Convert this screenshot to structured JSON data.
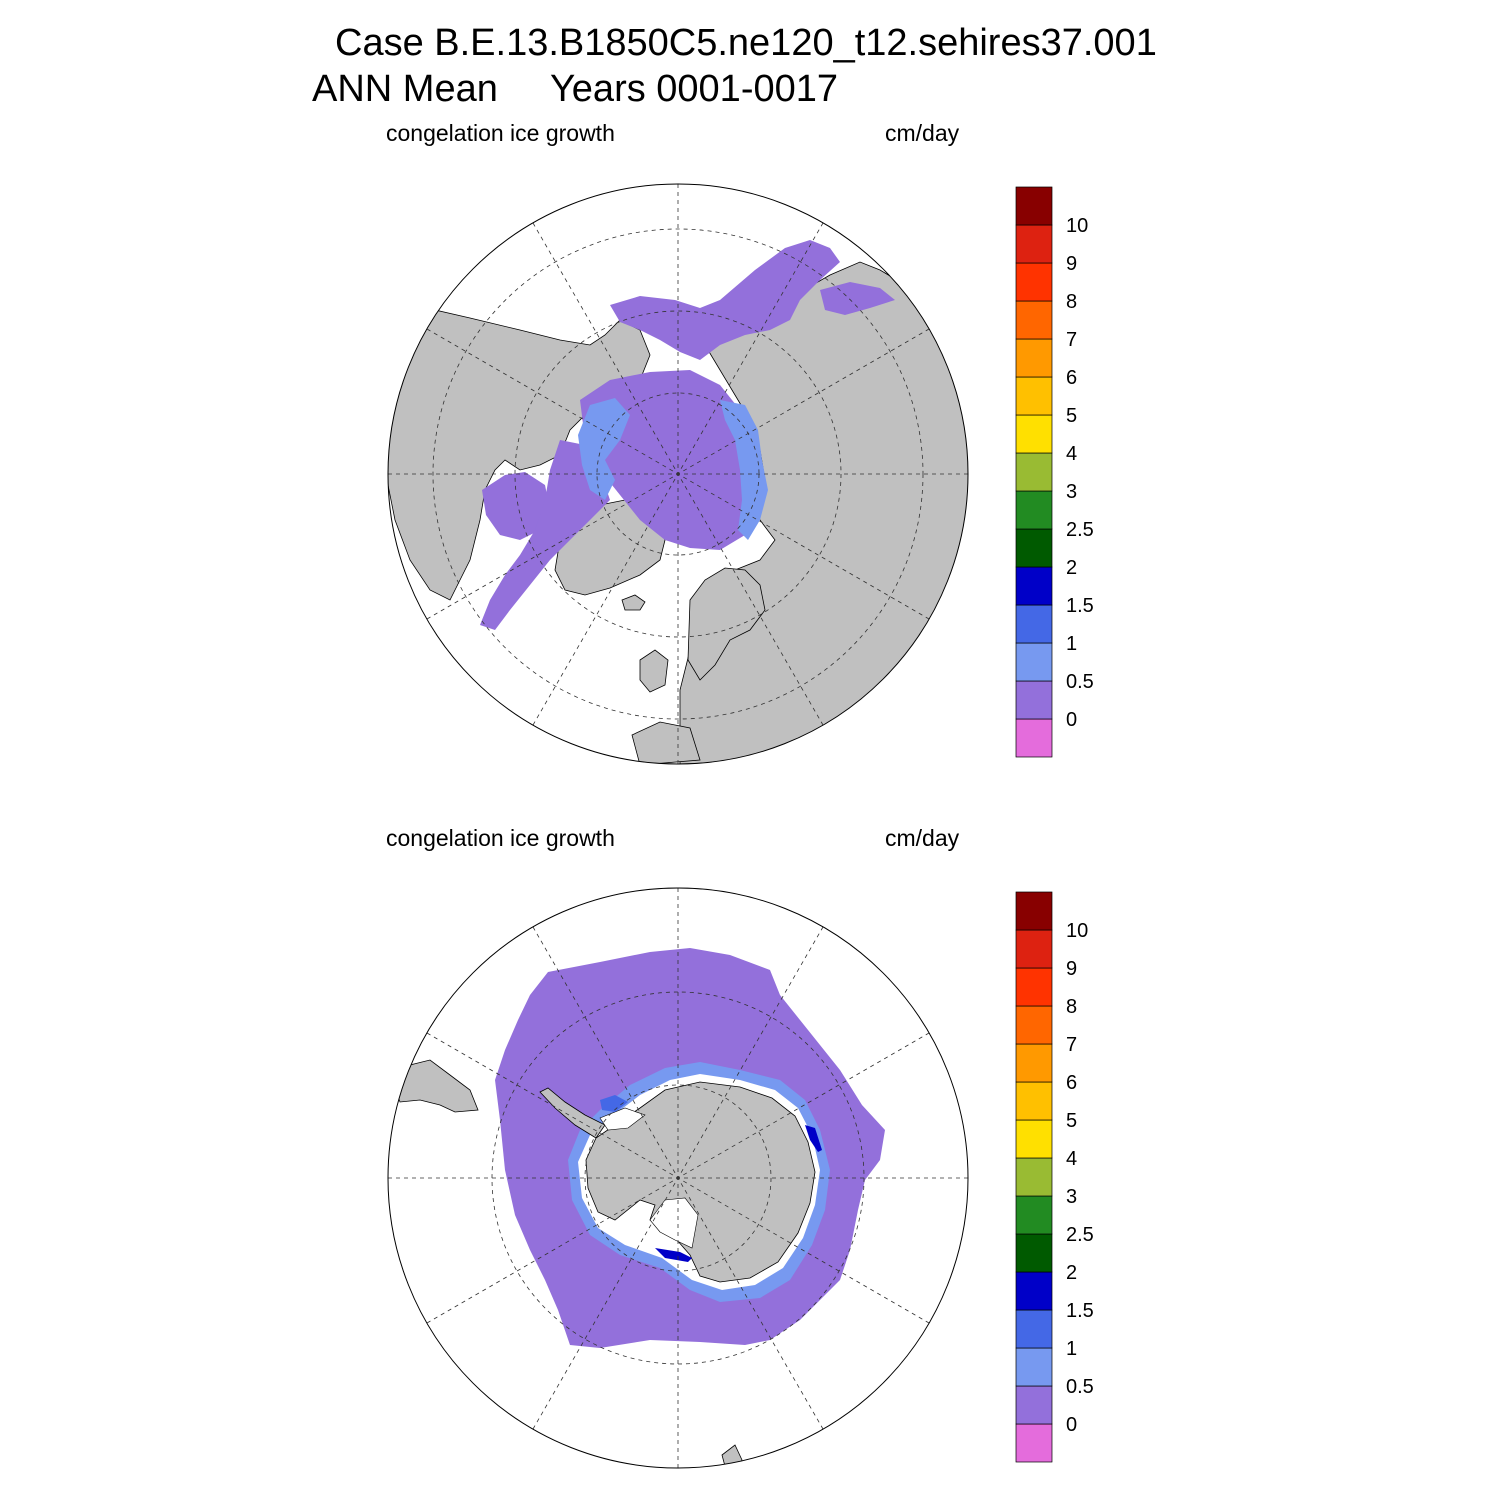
{
  "figure": {
    "title_line1": "Case B.E.13.B1850C5.ne120_t12.sehires37.001",
    "title_line2": "ANN Mean     Years 0001-0017"
  },
  "panels": [
    {
      "region": "Northern Hemisphere",
      "left_label": "congelation ice growth",
      "right_label": "cm/day"
    },
    {
      "region": "Southern Hemisphere",
      "left_label": "congelation ice growth",
      "right_label": "cm/day"
    }
  ],
  "colorbar": {
    "levels": [
      "0",
      "0.5",
      "1",
      "1.5",
      "2",
      "2.5",
      "3",
      "4",
      "5",
      "6",
      "7",
      "8",
      "9",
      "10"
    ],
    "colors": [
      "#E46CDC",
      "#9370DB",
      "#7799F0",
      "#4468E6",
      "#0000C8",
      "#005A00",
      "#228B22",
      "#99BB33",
      "#FFE000",
      "#FFC000",
      "#FF9900",
      "#FF6600",
      "#FF3300",
      "#DD2211",
      "#880000"
    ]
  },
  "colors": {
    "land": "#C0C0C0",
    "ocean_open": "#FFFFFF",
    "ice_low": "#9370DB",
    "ice_mid": "#7799F0",
    "ice_high": "#4468E6",
    "ice_max": "#0000C8"
  }
}
